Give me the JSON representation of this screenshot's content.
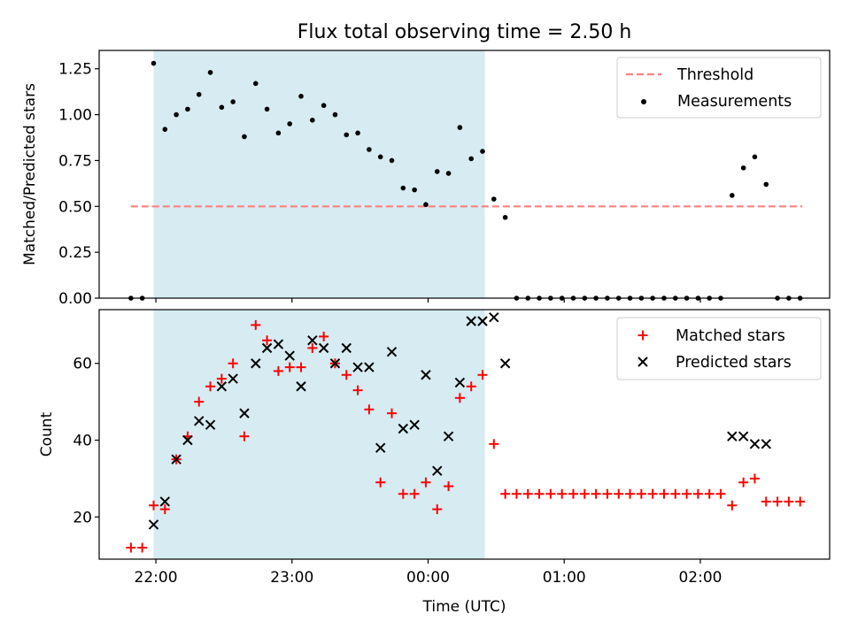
{
  "chart_data": [
    {
      "type": "scatter",
      "title": "Flux total observing time = 2.50 h",
      "xlabel": "",
      "ylabel": "Matched/Predicted stars",
      "xlim": [
        "21:35",
        "02:57"
      ],
      "ylim": [
        0,
        1.35
      ],
      "yticks": [
        "0.00",
        "0.25",
        "0.50",
        "0.75",
        "1.00",
        "1.25"
      ],
      "shaded_interval": [
        "21:59",
        "00:25"
      ],
      "shade_color": "#add8e6",
      "threshold": {
        "name": "Threshold",
        "value": 0.5,
        "x_range": [
          "21:49",
          "02:45"
        ],
        "color": "#ff7f7f"
      },
      "series": [
        {
          "name": "Measurements",
          "color": "#000000",
          "marker": "dot",
          "points": [
            [
              "21:49",
              0.0
            ],
            [
              "21:54",
              0.0
            ],
            [
              "21:59",
              1.28
            ],
            [
              "22:04",
              0.92
            ],
            [
              "22:09",
              1.0
            ],
            [
              "22:14",
              1.03
            ],
            [
              "22:19",
              1.11
            ],
            [
              "22:24",
              1.23
            ],
            [
              "22:29",
              1.04
            ],
            [
              "22:34",
              1.07
            ],
            [
              "22:39",
              0.88
            ],
            [
              "22:44",
              1.17
            ],
            [
              "22:49",
              1.03
            ],
            [
              "22:54",
              0.9
            ],
            [
              "22:59",
              0.95
            ],
            [
              "23:04",
              1.1
            ],
            [
              "23:09",
              0.97
            ],
            [
              "23:14",
              1.05
            ],
            [
              "23:19",
              1.0
            ],
            [
              "23:24",
              0.89
            ],
            [
              "23:29",
              0.9
            ],
            [
              "23:34",
              0.81
            ],
            [
              "23:39",
              0.77
            ],
            [
              "23:44",
              0.75
            ],
            [
              "23:49",
              0.6
            ],
            [
              "23:54",
              0.59
            ],
            [
              "23:59",
              0.51
            ],
            [
              "00:04",
              0.69
            ],
            [
              "00:09",
              0.68
            ],
            [
              "00:14",
              0.93
            ],
            [
              "00:19",
              0.76
            ],
            [
              "00:24",
              0.8
            ],
            [
              "00:29",
              0.54
            ],
            [
              "00:34",
              0.44
            ],
            [
              "00:39",
              0.0
            ],
            [
              "00:44",
              0.0
            ],
            [
              "00:49",
              0.0
            ],
            [
              "00:54",
              0.0
            ],
            [
              "00:59",
              0.0
            ],
            [
              "01:04",
              0.0
            ],
            [
              "01:09",
              0.0
            ],
            [
              "01:14",
              0.0
            ],
            [
              "01:19",
              0.0
            ],
            [
              "01:24",
              0.0
            ],
            [
              "01:29",
              0.0
            ],
            [
              "01:34",
              0.0
            ],
            [
              "01:39",
              0.0
            ],
            [
              "01:44",
              0.0
            ],
            [
              "01:49",
              0.0
            ],
            [
              "01:54",
              0.0
            ],
            [
              "01:59",
              0.0
            ],
            [
              "02:04",
              0.0
            ],
            [
              "02:09",
              0.0
            ],
            [
              "02:14",
              0.56
            ],
            [
              "02:19",
              0.71
            ],
            [
              "02:24",
              0.77
            ],
            [
              "02:29",
              0.62
            ],
            [
              "02:34",
              0.0
            ],
            [
              "02:39",
              0.0
            ],
            [
              "02:44",
              0.0
            ]
          ]
        }
      ],
      "legend": {
        "position": "upper right",
        "entries": [
          "Threshold",
          "Measurements"
        ]
      }
    },
    {
      "type": "scatter",
      "title": "",
      "xlabel": "Time (UTC)",
      "ylabel": "Count",
      "xlim": [
        "21:35",
        "02:57"
      ],
      "ylim": [
        9,
        74
      ],
      "yticks": [
        "20",
        "40",
        "60"
      ],
      "xticks": [
        "22:00",
        "23:00",
        "00:00",
        "01:00",
        "02:00"
      ],
      "shaded_interval": [
        "21:59",
        "00:25"
      ],
      "shade_color": "#add8e6",
      "series": [
        {
          "name": "Matched stars",
          "color": "#ff0000",
          "marker": "plus",
          "points": [
            [
              "21:49",
              12
            ],
            [
              "21:54",
              12
            ],
            [
              "21:59",
              23
            ],
            [
              "22:04",
              22
            ],
            [
              "22:09",
              35
            ],
            [
              "22:14",
              41
            ],
            [
              "22:19",
              50
            ],
            [
              "22:24",
              54
            ],
            [
              "22:29",
              56
            ],
            [
              "22:34",
              60
            ],
            [
              "22:39",
              41
            ],
            [
              "22:44",
              70
            ],
            [
              "22:49",
              66
            ],
            [
              "22:54",
              58
            ],
            [
              "22:59",
              59
            ],
            [
              "23:04",
              59
            ],
            [
              "23:09",
              64
            ],
            [
              "23:14",
              67
            ],
            [
              "23:19",
              60
            ],
            [
              "23:24",
              57
            ],
            [
              "23:29",
              53
            ],
            [
              "23:34",
              48
            ],
            [
              "23:39",
              29
            ],
            [
              "23:44",
              47
            ],
            [
              "23:49",
              26
            ],
            [
              "23:54",
              26
            ],
            [
              "23:59",
              29
            ],
            [
              "00:04",
              22
            ],
            [
              "00:09",
              28
            ],
            [
              "00:14",
              51
            ],
            [
              "00:19",
              54
            ],
            [
              "00:24",
              57
            ],
            [
              "00:29",
              39
            ],
            [
              "00:34",
              26
            ],
            [
              "00:39",
              26
            ],
            [
              "00:44",
              26
            ],
            [
              "00:49",
              26
            ],
            [
              "00:54",
              26
            ],
            [
              "00:59",
              26
            ],
            [
              "01:04",
              26
            ],
            [
              "01:09",
              26
            ],
            [
              "01:14",
              26
            ],
            [
              "01:19",
              26
            ],
            [
              "01:24",
              26
            ],
            [
              "01:29",
              26
            ],
            [
              "01:34",
              26
            ],
            [
              "01:39",
              26
            ],
            [
              "01:44",
              26
            ],
            [
              "01:49",
              26
            ],
            [
              "01:54",
              26
            ],
            [
              "01:59",
              26
            ],
            [
              "02:04",
              26
            ],
            [
              "02:09",
              26
            ],
            [
              "02:14",
              23
            ],
            [
              "02:19",
              29
            ],
            [
              "02:24",
              30
            ],
            [
              "02:29",
              24
            ],
            [
              "02:34",
              24
            ],
            [
              "02:39",
              24
            ],
            [
              "02:44",
              24
            ]
          ]
        },
        {
          "name": "Predicted stars",
          "color": "#000000",
          "marker": "x",
          "points": [
            [
              "21:59",
              18
            ],
            [
              "22:04",
              24
            ],
            [
              "22:09",
              35
            ],
            [
              "22:14",
              40
            ],
            [
              "22:19",
              45
            ],
            [
              "22:24",
              44
            ],
            [
              "22:29",
              54
            ],
            [
              "22:34",
              56
            ],
            [
              "22:39",
              47
            ],
            [
              "22:44",
              60
            ],
            [
              "22:49",
              64
            ],
            [
              "22:54",
              65
            ],
            [
              "22:59",
              62
            ],
            [
              "23:04",
              54
            ],
            [
              "23:09",
              66
            ],
            [
              "23:14",
              64
            ],
            [
              "23:19",
              60
            ],
            [
              "23:24",
              64
            ],
            [
              "23:29",
              59
            ],
            [
              "23:34",
              59
            ],
            [
              "23:39",
              38
            ],
            [
              "23:44",
              63
            ],
            [
              "23:49",
              43
            ],
            [
              "23:54",
              44
            ],
            [
              "23:59",
              57
            ],
            [
              "00:04",
              32
            ],
            [
              "00:09",
              41
            ],
            [
              "00:14",
              55
            ],
            [
              "00:19",
              71
            ],
            [
              "00:24",
              71
            ],
            [
              "00:29",
              72
            ],
            [
              "00:34",
              60
            ],
            [
              "02:14",
              41
            ],
            [
              "02:19",
              41
            ],
            [
              "02:24",
              39
            ],
            [
              "02:29",
              39
            ]
          ]
        }
      ],
      "legend": {
        "position": "upper right",
        "entries": [
          "Matched stars",
          "Predicted stars"
        ]
      }
    }
  ]
}
